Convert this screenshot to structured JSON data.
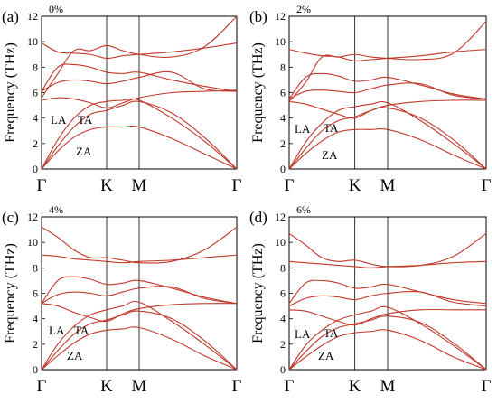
{
  "chart_data": [
    {
      "type": "line",
      "panel_label": "(a)",
      "strain": "0%",
      "ylabel": "Frequency (THz)",
      "ylim": [
        0,
        12
      ],
      "yticks": [
        0,
        2,
        4,
        6,
        8,
        10,
        12
      ],
      "x_tick_labels": [
        "Γ",
        "K",
        "M",
        "Γ"
      ],
      "x_tick_positions": [
        0,
        1,
        1.5,
        3
      ],
      "annotations": [
        "LA",
        "TA",
        "ZA"
      ],
      "zero_line": "dashed",
      "series": [
        {
          "x": [
            0,
            0.25,
            0.5,
            0.75,
            1,
            1.25,
            1.5,
            2,
            2.5,
            3
          ],
          "values": [
            0,
            1.4,
            2.5,
            3.1,
            3.3,
            3.3,
            3.3,
            2.4,
            1.2,
            0
          ]
        },
        {
          "x": [
            0,
            0.25,
            0.5,
            0.75,
            1,
            1.25,
            1.5,
            2,
            2.5,
            3
          ],
          "values": [
            0,
            1.8,
            3.3,
            4.3,
            4.6,
            5.0,
            5.3,
            4.4,
            2.5,
            0
          ]
        },
        {
          "x": [
            0,
            0.25,
            0.5,
            0.75,
            1,
            1.25,
            1.5,
            2,
            2.5,
            3
          ],
          "values": [
            0,
            2.3,
            4.0,
            5.0,
            5.3,
            5.4,
            5.4,
            4.0,
            2.2,
            0
          ]
        },
        {
          "x": [
            0,
            0.25,
            0.5,
            0.75,
            1,
            1.25,
            1.5,
            2,
            2.5,
            3
          ],
          "values": [
            5.4,
            5.6,
            5.5,
            5.2,
            4.8,
            5.2,
            5.6,
            6.0,
            6.1,
            6.2
          ]
        },
        {
          "x": [
            0,
            0.25,
            0.5,
            0.75,
            1,
            1.25,
            1.5,
            2,
            2.5,
            3
          ],
          "values": [
            6.1,
            6.8,
            7.0,
            6.9,
            6.7,
            6.9,
            7.2,
            7.6,
            6.3,
            6.1
          ]
        },
        {
          "x": [
            0,
            0.25,
            0.5,
            0.75,
            1,
            1.25,
            1.5,
            2,
            2.5,
            3
          ],
          "values": [
            6.1,
            8.0,
            8.2,
            8.0,
            7.6,
            7.5,
            7.6,
            7.0,
            6.5,
            6.1
          ]
        },
        {
          "x": [
            0,
            0.25,
            0.5,
            0.75,
            1,
            1.25,
            1.5,
            2,
            2.5,
            3
          ],
          "values": [
            9.9,
            9.2,
            9.1,
            9.0,
            8.7,
            8.9,
            9.0,
            9.2,
            9.5,
            9.9
          ]
        },
        {
          "x": [
            0,
            0.25,
            0.5,
            0.75,
            1,
            1.25,
            1.5,
            2,
            2.5,
            3
          ],
          "values": [
            5.6,
            7.5,
            9.3,
            9.3,
            9.7,
            9.3,
            9.0,
            8.8,
            9.6,
            12.0
          ]
        }
      ]
    },
    {
      "type": "line",
      "panel_label": "(b)",
      "strain": "2%",
      "ylabel": "Frequency (THz)",
      "ylim": [
        0,
        12
      ],
      "yticks": [
        0,
        2,
        4,
        6,
        8,
        10,
        12
      ],
      "x_tick_labels": [
        "Γ",
        "K",
        "M",
        "Γ"
      ],
      "x_tick_positions": [
        0,
        1,
        1.5,
        3
      ],
      "annotations": [
        "LA",
        "TA",
        "ZA"
      ],
      "zero_line": "dashed",
      "series": [
        {
          "x": [
            0,
            0.25,
            0.5,
            0.75,
            1,
            1.25,
            1.5,
            2,
            2.5,
            3
          ],
          "values": [
            0,
            1.2,
            2.2,
            2.9,
            3.1,
            3.1,
            3.1,
            2.3,
            1.1,
            0
          ]
        },
        {
          "x": [
            0,
            0.25,
            0.5,
            0.75,
            1,
            1.25,
            1.5,
            2,
            2.5,
            3
          ],
          "values": [
            0,
            1.6,
            3.0,
            3.8,
            4.1,
            4.6,
            4.8,
            4.0,
            2.3,
            0
          ]
        },
        {
          "x": [
            0,
            0.25,
            0.5,
            0.75,
            1,
            1.25,
            1.5,
            2,
            2.5,
            3
          ],
          "values": [
            0,
            2.1,
            3.6,
            4.6,
            4.9,
            5.1,
            5.2,
            3.8,
            2.0,
            0
          ]
        },
        {
          "x": [
            0,
            0.25,
            0.5,
            0.75,
            1,
            1.25,
            1.5,
            2,
            2.5,
            3
          ],
          "values": [
            5.3,
            5.1,
            4.7,
            4.3,
            4.0,
            4.6,
            5.0,
            5.3,
            5.4,
            5.4
          ]
        },
        {
          "x": [
            0,
            0.25,
            0.5,
            0.75,
            1,
            1.25,
            1.5,
            2,
            2.5,
            3
          ],
          "values": [
            5.5,
            6.1,
            6.2,
            6.1,
            6.0,
            6.3,
            6.6,
            6.7,
            5.8,
            5.5
          ]
        },
        {
          "x": [
            0,
            0.25,
            0.5,
            0.75,
            1,
            1.25,
            1.5,
            2,
            2.5,
            3
          ],
          "values": [
            5.5,
            7.2,
            7.5,
            7.3,
            6.9,
            7.0,
            7.2,
            6.6,
            5.9,
            5.5
          ]
        },
        {
          "x": [
            0,
            0.25,
            0.5,
            0.75,
            1,
            1.25,
            1.5,
            2,
            2.5,
            3
          ],
          "values": [
            9.4,
            9.1,
            8.9,
            8.8,
            8.5,
            8.6,
            8.7,
            8.9,
            9.2,
            9.4
          ]
        },
        {
          "x": [
            0,
            0.25,
            0.5,
            0.75,
            1,
            1.25,
            1.5,
            2,
            2.5,
            3
          ],
          "values": [
            5.3,
            6.8,
            8.8,
            8.8,
            9.0,
            8.8,
            8.7,
            8.6,
            9.1,
            11.6
          ]
        }
      ]
    },
    {
      "type": "line",
      "panel_label": "(c)",
      "strain": "4%",
      "ylabel": "Frequency (THz)",
      "ylim": [
        0,
        12
      ],
      "yticks": [
        0,
        2,
        4,
        6,
        8,
        10,
        12
      ],
      "x_tick_labels": [
        "Γ",
        "K",
        "M",
        "Γ"
      ],
      "x_tick_positions": [
        0,
        1,
        1.5,
        3
      ],
      "annotations": [
        "LA",
        "TA",
        "ZA"
      ],
      "zero_line": "dashed",
      "series": [
        {
          "x": [
            0,
            0.25,
            0.5,
            0.75,
            1,
            1.25,
            1.5,
            2,
            2.5,
            3
          ],
          "values": [
            0,
            1.1,
            2.1,
            2.8,
            3.1,
            3.2,
            3.3,
            2.4,
            1.1,
            0
          ]
        },
        {
          "x": [
            0,
            0.25,
            0.5,
            0.75,
            1,
            1.25,
            1.5,
            2,
            2.5,
            3
          ],
          "values": [
            0,
            1.5,
            2.8,
            3.6,
            3.9,
            4.3,
            4.6,
            4.0,
            2.3,
            0
          ]
        },
        {
          "x": [
            0,
            0.25,
            0.5,
            0.75,
            1,
            1.25,
            1.5,
            2,
            2.5,
            3
          ],
          "values": [
            0,
            2.0,
            3.4,
            4.3,
            4.7,
            5.0,
            5.3,
            3.8,
            2.0,
            0
          ]
        },
        {
          "x": [
            0,
            0.25,
            0.5,
            0.75,
            1,
            1.25,
            1.5,
            2,
            2.5,
            3
          ],
          "values": [
            5.2,
            5.0,
            4.5,
            4.1,
            3.8,
            4.4,
            4.8,
            5.1,
            5.2,
            5.2
          ]
        },
        {
          "x": [
            0,
            0.25,
            0.5,
            0.75,
            1,
            1.25,
            1.5,
            2,
            2.5,
            3
          ],
          "values": [
            5.2,
            5.9,
            6.1,
            6.0,
            5.8,
            6.1,
            6.4,
            6.5,
            5.6,
            5.2
          ]
        },
        {
          "x": [
            0,
            0.25,
            0.5,
            0.75,
            1,
            1.25,
            1.5,
            2,
            2.5,
            3
          ],
          "values": [
            5.2,
            7.0,
            7.3,
            7.1,
            6.7,
            6.8,
            7.0,
            6.4,
            5.7,
            5.2
          ]
        },
        {
          "x": [
            0,
            0.25,
            0.5,
            0.75,
            1,
            1.25,
            1.5,
            2,
            2.5,
            3
          ],
          "values": [
            9.0,
            8.9,
            8.7,
            8.6,
            8.5,
            8.4,
            8.5,
            8.6,
            8.8,
            9.0
          ]
        },
        {
          "x": [
            0,
            0.25,
            0.5,
            0.75,
            1,
            1.25,
            1.5,
            2,
            2.5,
            3
          ],
          "values": [
            11.2,
            10.4,
            9.4,
            8.8,
            8.8,
            8.6,
            8.4,
            8.5,
            9.4,
            11.2
          ]
        }
      ]
    },
    {
      "type": "line",
      "panel_label": "(d)",
      "strain": "6%",
      "ylabel": "Frequency (THz)",
      "ylim": [
        0,
        12
      ],
      "yticks": [
        0,
        2,
        4,
        6,
        8,
        10,
        12
      ],
      "x_tick_labels": [
        "Γ",
        "K",
        "M",
        "Γ"
      ],
      "x_tick_positions": [
        0,
        1,
        1.5,
        3
      ],
      "annotations": [
        "LA",
        "TA",
        "ZA"
      ],
      "zero_line": "dashed",
      "series": [
        {
          "x": [
            0,
            0.25,
            0.5,
            0.75,
            1,
            1.25,
            1.5,
            2,
            2.5,
            3
          ],
          "values": [
            0,
            1.0,
            1.9,
            2.6,
            2.9,
            3.0,
            3.1,
            2.3,
            1.0,
            0
          ]
        },
        {
          "x": [
            0,
            0.25,
            0.5,
            0.75,
            1,
            1.25,
            1.5,
            2,
            2.5,
            3
          ],
          "values": [
            0,
            1.4,
            2.6,
            3.3,
            3.6,
            3.9,
            4.2,
            3.7,
            2.1,
            0
          ]
        },
        {
          "x": [
            0,
            0.25,
            0.5,
            0.75,
            1,
            1.25,
            1.5,
            2,
            2.5,
            3
          ],
          "values": [
            0,
            1.9,
            3.1,
            3.9,
            4.3,
            4.6,
            4.9,
            3.6,
            1.9,
            0
          ]
        },
        {
          "x": [
            0,
            0.25,
            0.5,
            0.75,
            1,
            1.25,
            1.5,
            2,
            2.5,
            3
          ],
          "values": [
            4.7,
            4.6,
            4.2,
            3.8,
            3.5,
            4.0,
            4.4,
            4.7,
            4.7,
            4.7
          ]
        },
        {
          "x": [
            0,
            0.25,
            0.5,
            0.75,
            1,
            1.25,
            1.5,
            2,
            2.5,
            3
          ],
          "values": [
            5.0,
            5.6,
            5.8,
            5.7,
            5.5,
            5.8,
            6.0,
            6.1,
            5.3,
            5.0
          ]
        },
        {
          "x": [
            0,
            0.25,
            0.5,
            0.75,
            1,
            1.25,
            1.5,
            2,
            2.5,
            3
          ],
          "values": [
            5.2,
            6.8,
            7.0,
            6.8,
            6.4,
            6.5,
            6.7,
            6.1,
            5.5,
            5.2
          ]
        },
        {
          "x": [
            0,
            0.25,
            0.5,
            0.75,
            1,
            1.25,
            1.5,
            2,
            2.5,
            3
          ],
          "values": [
            8.5,
            8.4,
            8.3,
            8.2,
            8.1,
            8.0,
            8.1,
            8.2,
            8.4,
            8.5
          ]
        },
        {
          "x": [
            0,
            0.25,
            0.5,
            0.75,
            1,
            1.25,
            1.5,
            2,
            2.5,
            3
          ],
          "values": [
            10.7,
            9.8,
            8.8,
            8.5,
            8.6,
            8.3,
            8.1,
            8.2,
            8.9,
            10.7
          ]
        }
      ]
    }
  ]
}
